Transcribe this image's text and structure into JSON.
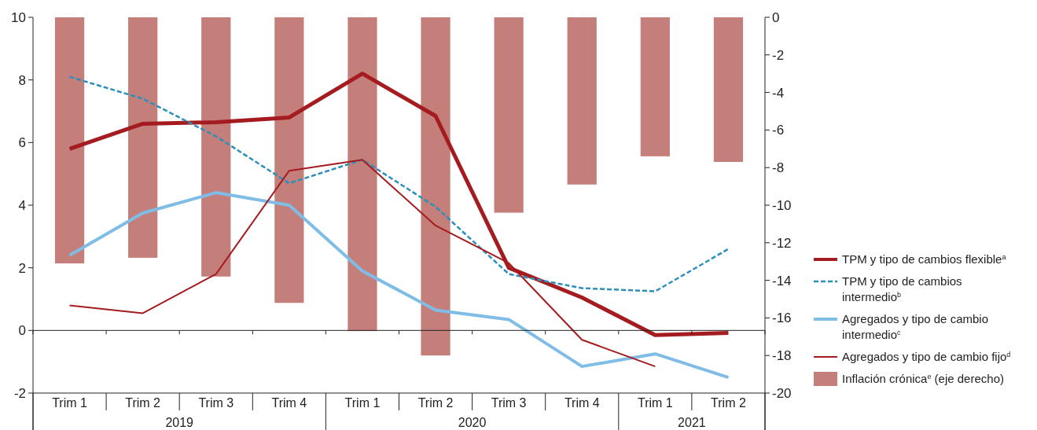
{
  "chart_data": {
    "type": "line",
    "categories": [
      "Trim 1",
      "Trim 2",
      "Trim 3",
      "Trim 4",
      "Trim 1",
      "Trim 2",
      "Trim 3",
      "Trim 4",
      "Trim 1",
      "Trim 2"
    ],
    "annotations": [
      "2019",
      "2020",
      "2021"
    ],
    "series": [
      {
        "name": "TPM y tipo de cambios flexible$^{a}$",
        "color": "#a51c20",
        "line_style": "solid",
        "values": [
          5.8,
          6.6,
          6.65,
          6.8,
          8.2,
          6.85,
          2.0,
          1.05,
          -0.15,
          -0.08
        ]
      },
      {
        "name": "TPM y tipo de cambios intermedio$^{b}$",
        "color": "#2a8fbd",
        "line_style": "dashed",
        "values": [
          8.1,
          7.4,
          6.2,
          4.7,
          5.45,
          3.95,
          1.8,
          1.35,
          1.25,
          2.6
        ]
      },
      {
        "name": "Agregados y tipo de cambio intermedio$^{c}$",
        "color": "#7fbde6",
        "line_style": "solid",
        "values": [
          2.4,
          3.75,
          4.4,
          4.0,
          1.9,
          0.65,
          0.35,
          -1.15,
          -0.75,
          -1.5
        ]
      },
      {
        "name": "Agregados y tipo de cambio fijo$^{d}$",
        "color": "#a51c20",
        "line_style": "solid",
        "values": [
          0.8,
          0.55,
          1.8,
          5.1,
          5.45,
          3.35,
          2.15,
          -0.3,
          -1.15,
          null
        ]
      },
      {
        "name": "Inflación crónica$^{e}$ (eje derecho)",
        "color": "#c47f7b",
        "type": "bar",
        "axis": "y2",
        "values": [
          -13.1,
          -12.8,
          -13.8,
          -15.2,
          -16.7,
          -18.0,
          -10.4,
          -8.9,
          -7.4,
          -7.7
        ]
      }
    ],
    "ylim": [
      -2,
      10
    ],
    "yticks": [
      -2,
      0,
      2,
      4,
      6,
      8,
      10
    ],
    "y2lim": [
      -20,
      0
    ],
    "y2ticks": [
      -20,
      -18,
      -16,
      -14,
      -12,
      -10,
      -8,
      -6,
      -4,
      -2,
      0
    ],
    "legend": "right"
  }
}
